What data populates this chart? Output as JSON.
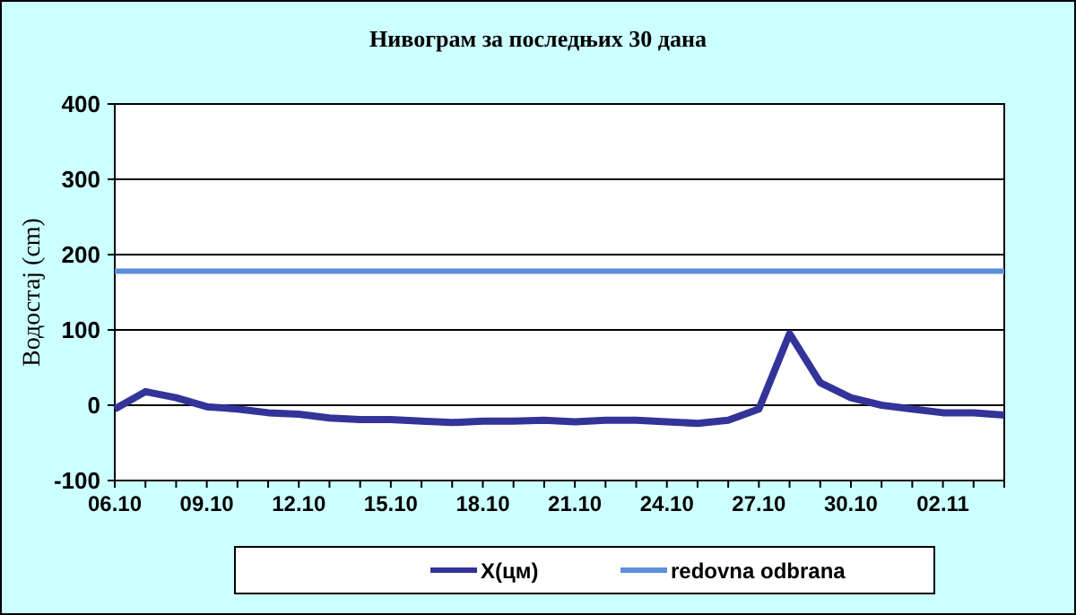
{
  "chart_data": {
    "type": "line",
    "title": "Нивограм за последњих 30 дана",
    "ylabel": "Водостај (cm)",
    "categories": [
      "06.10",
      null,
      null,
      "09.10",
      null,
      null,
      "12.10",
      null,
      null,
      "15.10",
      null,
      null,
      "18.10",
      null,
      null,
      "21.10",
      null,
      null,
      "24.10",
      null,
      null,
      "27.10",
      null,
      null,
      "30.10",
      null,
      null,
      "02.11",
      null,
      null
    ],
    "series": [
      {
        "name": "X(цм)",
        "color": "#333399",
        "values": [
          -5,
          18,
          10,
          -2,
          -5,
          -10,
          -12,
          -17,
          -19,
          -19,
          -21,
          -23,
          -21,
          -21,
          -20,
          -22,
          -20,
          -20,
          -22,
          -24,
          -20,
          -5,
          95,
          30,
          10,
          0,
          -5,
          -10,
          -10,
          -13
        ]
      },
      {
        "name": "redovna odbrana",
        "color": "#5b8fd9",
        "values": [
          178,
          178,
          178,
          178,
          178,
          178,
          178,
          178,
          178,
          178,
          178,
          178,
          178,
          178,
          178,
          178,
          178,
          178,
          178,
          178,
          178,
          178,
          178,
          178,
          178,
          178,
          178,
          178,
          178,
          178
        ]
      }
    ],
    "ylim": [
      -100,
      400
    ],
    "yticks": [
      -100,
      0,
      100,
      200,
      300,
      400
    ],
    "grid": "y",
    "legend": "bottom",
    "marker": "none",
    "line_style": "solid"
  }
}
